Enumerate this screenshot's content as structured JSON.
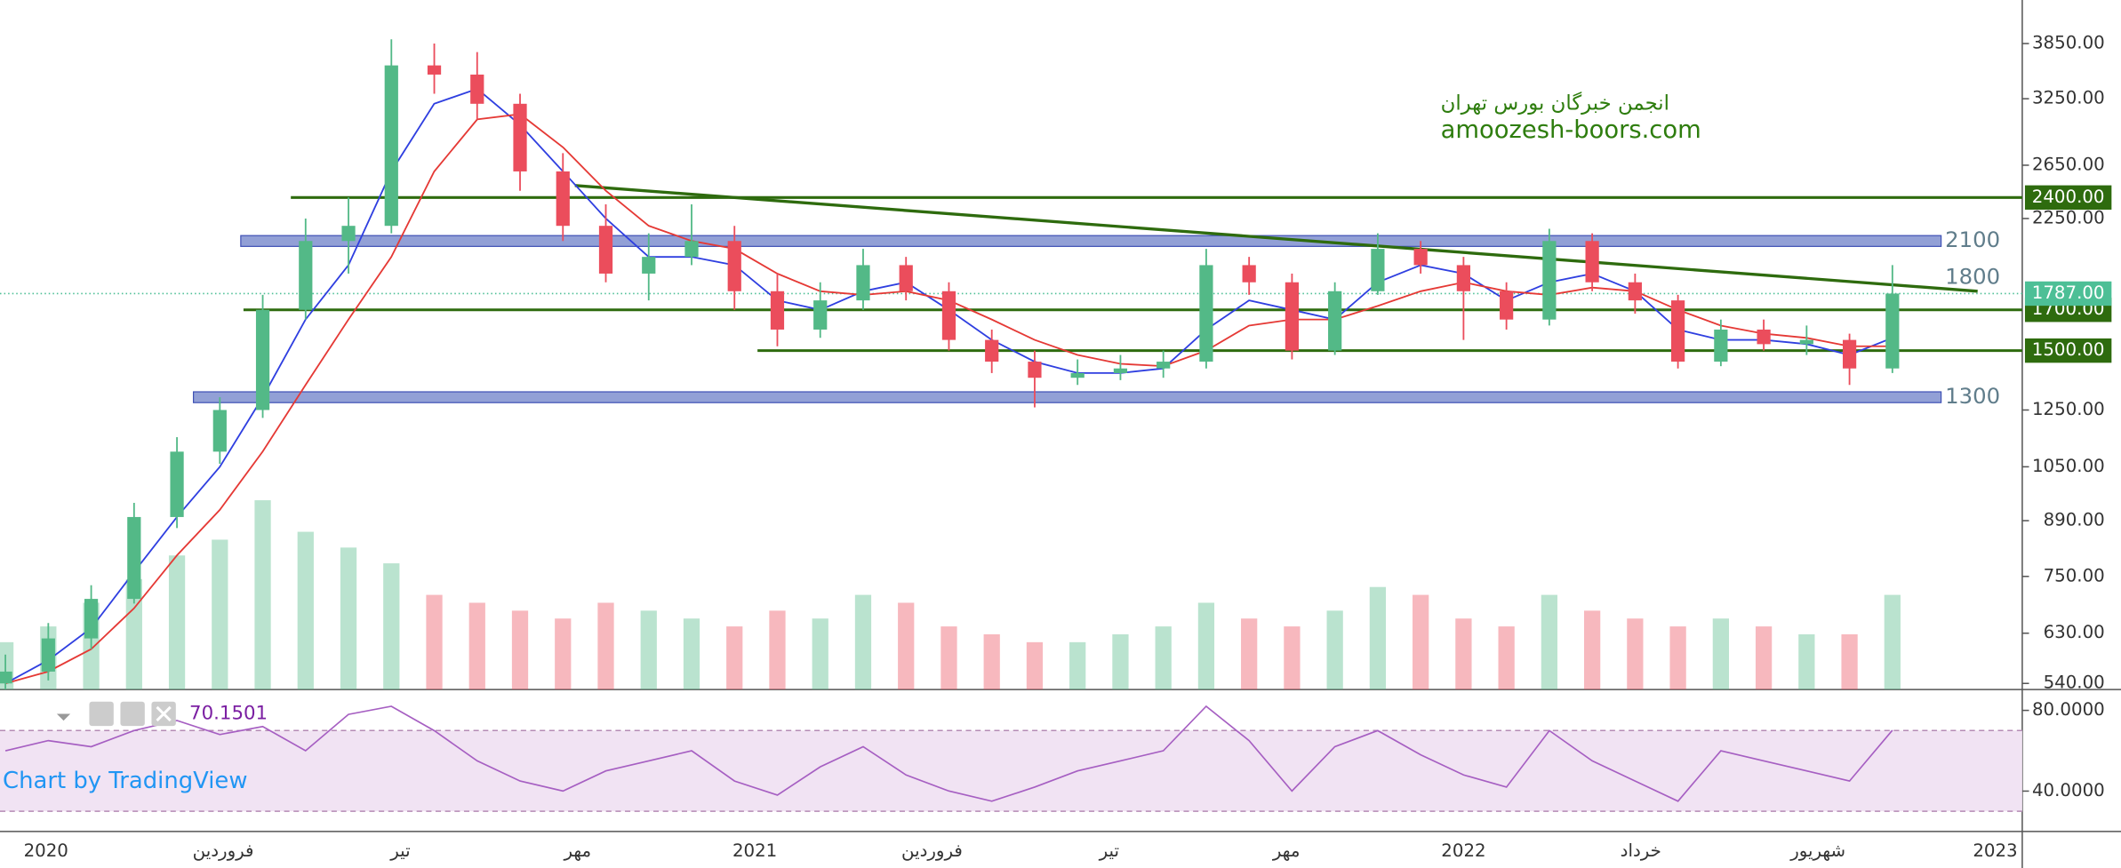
{
  "chart_data": {
    "type": "candlestick",
    "watermark": [
      "انجمن خبرگان بورس تهران",
      "amoozesh-boors.com"
    ],
    "credit": "Chart by TradingView",
    "categories": [
      "2020",
      "فروردین",
      "تیر",
      "مهر",
      "2021",
      "فروردین",
      "تیر",
      "مهر",
      "2022",
      "خرداد",
      "شهریور",
      "2023"
    ],
    "open": [
      540,
      560,
      620,
      700,
      900,
      1100,
      1250,
      1700,
      2100,
      2200,
      3600,
      3500,
      3200,
      2600,
      2200,
      1900,
      2000,
      2100,
      1800,
      1600,
      1750,
      1950,
      1800,
      1550,
      1450,
      1380,
      1400,
      1420,
      1450,
      1950,
      1850,
      1500,
      1800,
      2050,
      1950,
      1800,
      1650,
      2100,
      1850,
      1750,
      1450,
      1600,
      1530,
      1550,
      1420
    ],
    "high": [
      590,
      650,
      730,
      940,
      1150,
      1300,
      1780,
      2250,
      2400,
      3900,
      3850,
      3750,
      3300,
      2750,
      2350,
      2150,
      2350,
      2200,
      1900,
      1850,
      2050,
      2000,
      1850,
      1600,
      1500,
      1460,
      1480,
      1500,
      2050,
      2000,
      1900,
      1850,
      2150,
      2100,
      2000,
      1850,
      2180,
      2150,
      1900,
      1780,
      1650,
      1650,
      1620,
      1580,
      1950
    ],
    "low": [
      530,
      545,
      600,
      690,
      870,
      1060,
      1220,
      1650,
      1900,
      2150,
      3300,
      3050,
      2450,
      2100,
      1850,
      1750,
      1950,
      1700,
      1520,
      1560,
      1700,
      1750,
      1500,
      1400,
      1260,
      1350,
      1370,
      1380,
      1420,
      1780,
      1460,
      1480,
      1780,
      1900,
      1550,
      1600,
      1620,
      1800,
      1680,
      1420,
      1430,
      1500,
      1480,
      1350,
      1400
    ],
    "close": [
      560,
      620,
      700,
      900,
      1100,
      1250,
      1700,
      2100,
      2200,
      3600,
      3500,
      3200,
      2600,
      2200,
      1900,
      2000,
      2100,
      1800,
      1600,
      1750,
      1950,
      1800,
      1550,
      1450,
      1380,
      1400,
      1420,
      1450,
      1950,
      1850,
      1500,
      1800,
      2050,
      1950,
      1800,
      1650,
      2100,
      1850,
      1750,
      1450,
      1600,
      1530,
      1550,
      1420,
      1787
    ],
    "volume": [
      30,
      40,
      55,
      70,
      85,
      95,
      120,
      100,
      90,
      80,
      60,
      55,
      50,
      45,
      55,
      50,
      45,
      40,
      50,
      45,
      60,
      55,
      40,
      35,
      30,
      30,
      35,
      40,
      55,
      45,
      40,
      50,
      65,
      60,
      45,
      40,
      60,
      50,
      45,
      40,
      45,
      40,
      35,
      35,
      60
    ],
    "up_color": "#53b987",
    "down_color": "#eb4d5c",
    "overlays": [
      {
        "color": "#2f3fe0",
        "values": [
          540,
          580,
          640,
          760,
          900,
          1050,
          1300,
          1650,
          1950,
          2600,
          3200,
          3350,
          3000,
          2600,
          2250,
          2000,
          2000,
          1950,
          1750,
          1700,
          1800,
          1850,
          1700,
          1550,
          1450,
          1400,
          1400,
          1420,
          1600,
          1750,
          1700,
          1650,
          1850,
          1950,
          1900,
          1750,
          1850,
          1900,
          1800,
          1600,
          1550,
          1550,
          1530,
          1480,
          1560
        ]
      },
      {
        "color": "#e53935",
        "values": [
          540,
          560,
          600,
          680,
          800,
          920,
          1100,
          1350,
          1650,
          2000,
          2600,
          3050,
          3100,
          2800,
          2450,
          2200,
          2100,
          2050,
          1900,
          1800,
          1780,
          1800,
          1750,
          1650,
          1550,
          1480,
          1440,
          1430,
          1500,
          1620,
          1650,
          1650,
          1720,
          1800,
          1850,
          1800,
          1780,
          1820,
          1800,
          1700,
          1620,
          1580,
          1560,
          1520,
          1520
        ]
      }
    ],
    "ylim": [
      530,
      4400
    ],
    "log_scale": true,
    "yticks": [
      {
        "value": 540,
        "label": "540.00"
      },
      {
        "value": 630,
        "label": "630.00"
      },
      {
        "value": 750,
        "label": "750.00"
      },
      {
        "value": 890,
        "label": "890.00"
      },
      {
        "value": 1050,
        "label": "1050.00"
      },
      {
        "value": 1250,
        "label": "1250.00"
      },
      {
        "value": 2250,
        "label": "2250.00"
      },
      {
        "value": 2650,
        "label": "2650.00"
      },
      {
        "value": 3250,
        "label": "3250.00"
      },
      {
        "value": 3850,
        "label": "3850.00"
      }
    ],
    "levels": [
      {
        "value": 2400,
        "label": "2400.00"
      },
      {
        "value": 1700,
        "label": "1700.00"
      },
      {
        "value": 1500,
        "label": "1500.00"
      }
    ],
    "level_color": "#2e6b0e",
    "zones": [
      2100,
      1300
    ],
    "zone_color": "#7f8fcf",
    "trendline": {
      "values": [
        2490,
        1800
      ]
    },
    "last_price": {
      "value": 1787,
      "label": "1787.00",
      "color": "#4dbf96"
    },
    "rsi": {
      "values": [
        60,
        65,
        62,
        70,
        75,
        68,
        72,
        60,
        78,
        82,
        70,
        55,
        45,
        40,
        50,
        55,
        60,
        45,
        38,
        52,
        62,
        48,
        40,
        35,
        42,
        50,
        55,
        60,
        82,
        65,
        40,
        62,
        70,
        58,
        48,
        42,
        70,
        55,
        45,
        35,
        60,
        55,
        50,
        45,
        70.1501
      ],
      "ylim": [
        20,
        89
      ],
      "yticks": [
        {
          "value": 80,
          "label": "80.0000"
        },
        {
          "value": 40,
          "label": "40.0000"
        }
      ],
      "bands": [
        30,
        70
      ],
      "color": "#a65fc2"
    }
  }
}
